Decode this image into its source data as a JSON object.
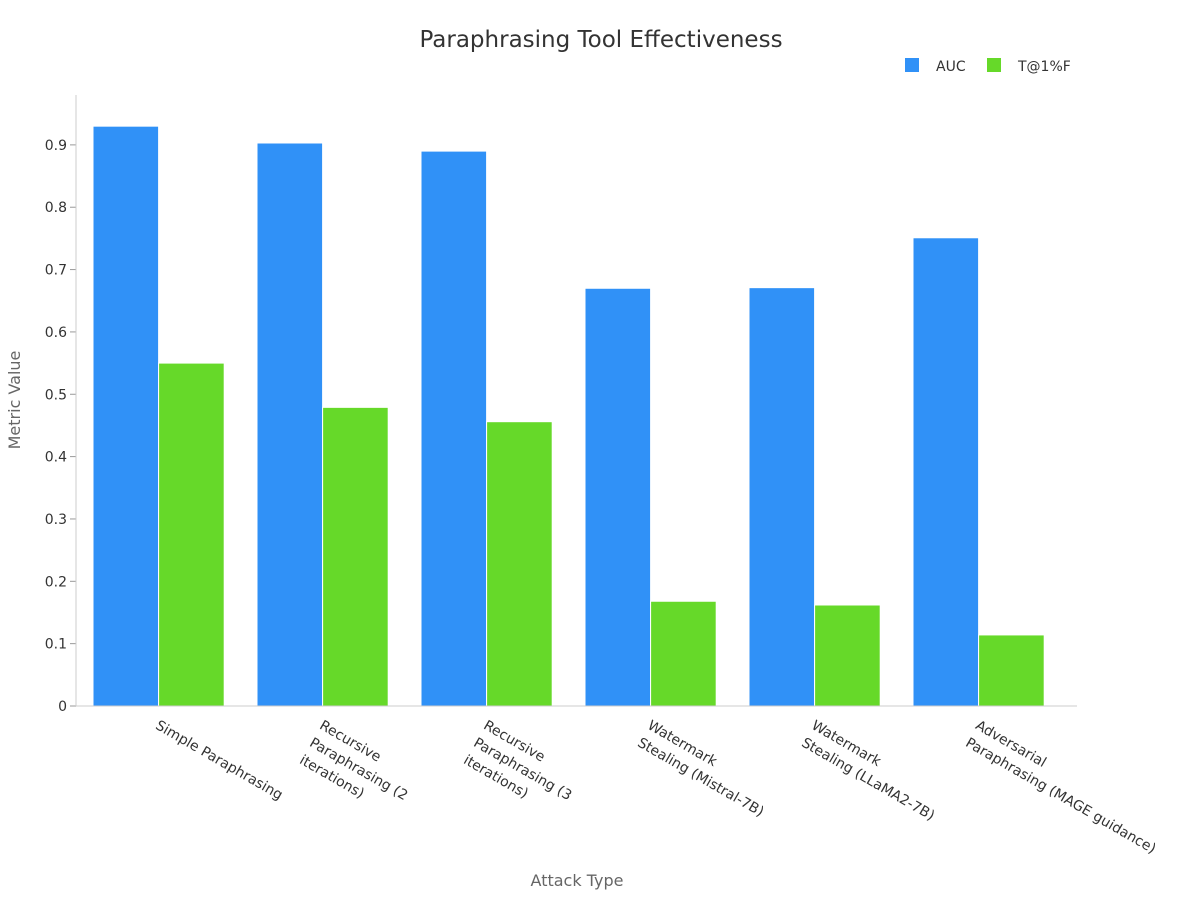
{
  "chart_data": {
    "type": "bar",
    "title": "Paraphrasing Tool Effectiveness",
    "xlabel": "Attack Type",
    "ylabel": "Metric Value",
    "categories": [
      "Simple Paraphrasing",
      "Recursive Paraphrasing (2 iterations)",
      "Recursive Paraphrasing (3 iterations)",
      "Watermark Stealing (Mistral-7B)",
      "Watermark Stealing (LLaMA2-7B)",
      "Adversarial Paraphrasing (MAGE guidance)"
    ],
    "category_label_lines": [
      [
        "Simple Paraphrasing"
      ],
      [
        "Recursive",
        "Paraphrasing (2",
        "iterations)"
      ],
      [
        "Recursive",
        "Paraphrasing (3",
        "iterations)"
      ],
      [
        "Watermark",
        "Stealing (Mistral-7B)"
      ],
      [
        "Watermark",
        "Stealing (LLaMA2-7B)"
      ],
      [
        "Adversarial",
        "Paraphrasing (MAGE guidance)"
      ]
    ],
    "series": [
      {
        "name": "AUC",
        "color": "#3091f7",
        "values": [
          0.93,
          0.903,
          0.89,
          0.67,
          0.671,
          0.751
        ]
      },
      {
        "name": "T@1%F",
        "color": "#66d929",
        "values": [
          0.55,
          0.479,
          0.456,
          0.168,
          0.162,
          0.114
        ]
      }
    ],
    "ylim": [
      0,
      0.98
    ],
    "yticks": [
      0,
      0.1,
      0.2,
      0.3,
      0.4,
      0.5,
      0.6,
      0.7,
      0.8,
      0.9
    ],
    "ytick_labels": [
      "0",
      "0.1",
      "0.2",
      "0.3",
      "0.4",
      "0.5",
      "0.6",
      "0.7",
      "0.8",
      "0.9"
    ],
    "grid": false,
    "legend_position": "top-right"
  }
}
